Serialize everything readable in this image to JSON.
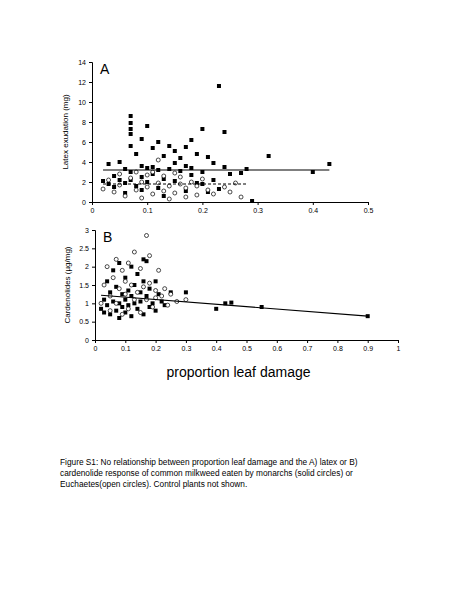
{
  "chart_data": [
    {
      "type": "scatter",
      "title": "A",
      "y_label": "Latex exudation (mg)",
      "xlim": [
        0,
        0.5
      ],
      "xticks": [
        0,
        0.1,
        0.2,
        0.3,
        0.4,
        0.5
      ],
      "ylim": [
        0,
        14
      ],
      "yticks": [
        0,
        2,
        4,
        6,
        8,
        10,
        12,
        14
      ],
      "series": [
        {
          "type": "scatter",
          "marker": "square",
          "color": "#000000",
          "x": [
            0.02,
            0.03,
            0.03,
            0.04,
            0.04,
            0.05,
            0.05,
            0.06,
            0.06,
            0.06,
            0.07,
            0.07,
            0.07,
            0.07,
            0.07,
            0.07,
            0.07,
            0.08,
            0.08,
            0.09,
            0.09,
            0.09,
            0.09,
            0.1,
            0.1,
            0.1,
            0.11,
            0.11,
            0.11,
            0.12,
            0.12,
            0.12,
            0.13,
            0.13,
            0.13,
            0.14,
            0.14,
            0.15,
            0.15,
            0.15,
            0.16,
            0.16,
            0.17,
            0.17,
            0.17,
            0.18,
            0.18,
            0.18,
            0.19,
            0.19,
            0.2,
            0.2,
            0.2,
            0.21,
            0.21,
            0.22,
            0.22,
            0.23,
            0.23,
            0.24,
            0.24,
            0.25,
            0.27,
            0.28,
            0.29,
            0.32,
            0.4,
            0.43
          ],
          "values": [
            2.1,
            1.8,
            3.8,
            2.6,
            1.5,
            4.0,
            2.2,
            3.3,
            1.9,
            0.9,
            8.6,
            7.9,
            7.3,
            6.8,
            5.6,
            3.0,
            2.2,
            4.8,
            1.6,
            6.3,
            3.6,
            2.5,
            1.2,
            7.6,
            3.4,
            2.0,
            5.4,
            3.5,
            2.8,
            6.0,
            3.2,
            1.4,
            4.6,
            2.3,
            0.6,
            5.6,
            3.3,
            5.1,
            3.9,
            2.1,
            4.4,
            3.1,
            5.5,
            3.6,
            1.1,
            6.2,
            3.4,
            2.7,
            4.8,
            1.9,
            7.3,
            3.0,
            1.8,
            4.5,
            1.0,
            3.9,
            2.2,
            11.6,
            1.3,
            3.5,
            7.0,
            2.8,
            2.9,
            3.3,
            0.1,
            4.6,
            3.0,
            3.8
          ]
        },
        {
          "type": "scatter",
          "marker": "open-circle",
          "color": "#000000",
          "x": [
            0.02,
            0.03,
            0.04,
            0.05,
            0.05,
            0.06,
            0.07,
            0.08,
            0.08,
            0.09,
            0.09,
            0.1,
            0.1,
            0.11,
            0.11,
            0.12,
            0.12,
            0.13,
            0.13,
            0.14,
            0.14,
            0.15,
            0.15,
            0.16,
            0.16,
            0.17,
            0.17,
            0.18,
            0.19,
            0.19,
            0.2,
            0.21,
            0.22,
            0.24,
            0.25,
            0.26,
            0.27
          ],
          "values": [
            1.3,
            2.2,
            1.0,
            2.8,
            1.7,
            0.6,
            2.4,
            3.0,
            1.2,
            0.4,
            2.0,
            1.5,
            2.7,
            0.8,
            3.0,
            1.9,
            4.2,
            1.1,
            2.6,
            0.3,
            1.6,
            2.9,
            0.9,
            1.8,
            2.5,
            0.5,
            1.4,
            2.0,
            0.7,
            1.6,
            2.3,
            1.2,
            0.8,
            1.5,
            1.0,
            1.9,
            0.5
          ]
        },
        {
          "type": "line",
          "line_style": "solid",
          "color": "#000000",
          "x": [
            0.02,
            0.43
          ],
          "values": [
            3.2,
            3.2
          ]
        },
        {
          "type": "line",
          "line_style": "dashed",
          "color": "#000000",
          "x": [
            0.02,
            0.28
          ],
          "values": [
            1.8,
            1.8
          ]
        }
      ]
    },
    {
      "type": "scatter",
      "title": "B",
      "y_label": "Cardenolides (µg/mg)",
      "x_label": "proportion leaf damage",
      "xlim": [
        0,
        1
      ],
      "xticks": [
        0,
        0.1,
        0.2,
        0.3,
        0.4,
        0.5,
        0.6,
        0.7,
        0.8,
        0.9,
        1
      ],
      "ylim": [
        0,
        3
      ],
      "yticks": [
        0,
        0.5,
        1,
        1.5,
        2,
        2.5,
        3
      ],
      "series": [
        {
          "type": "scatter",
          "marker": "square",
          "color": "#000000",
          "x": [
            0.02,
            0.03,
            0.03,
            0.04,
            0.04,
            0.05,
            0.05,
            0.06,
            0.06,
            0.07,
            0.07,
            0.08,
            0.08,
            0.08,
            0.09,
            0.09,
            0.1,
            0.1,
            0.1,
            0.11,
            0.11,
            0.12,
            0.12,
            0.12,
            0.13,
            0.13,
            0.14,
            0.14,
            0.15,
            0.15,
            0.16,
            0.16,
            0.16,
            0.17,
            0.17,
            0.18,
            0.18,
            0.19,
            0.2,
            0.2,
            0.21,
            0.22,
            0.23,
            0.25,
            0.3,
            0.4,
            0.43,
            0.45,
            0.55,
            0.9
          ],
          "values": [
            0.85,
            1.1,
            0.75,
            1.6,
            0.95,
            1.3,
            0.7,
            1.9,
            1.05,
            0.8,
            1.45,
            2.1,
            1.0,
            0.6,
            1.25,
            0.9,
            1.7,
            1.1,
            0.75,
            1.35,
            0.95,
            2.0,
            1.2,
            0.65,
            1.5,
            1.0,
            1.8,
            0.85,
            1.3,
            1.05,
            2.2,
            1.6,
            0.7,
            2.15,
            1.2,
            1.4,
            0.9,
            1.0,
            1.6,
            0.8,
            1.25,
            1.05,
            0.95,
            1.3,
            1.3,
            0.85,
            1.0,
            1.02,
            0.9,
            0.65
          ]
        },
        {
          "type": "scatter",
          "marker": "open-circle",
          "color": "#000000",
          "x": [
            0.02,
            0.03,
            0.04,
            0.05,
            0.05,
            0.06,
            0.07,
            0.07,
            0.08,
            0.09,
            0.09,
            0.1,
            0.1,
            0.11,
            0.11,
            0.12,
            0.13,
            0.13,
            0.14,
            0.15,
            0.15,
            0.16,
            0.17,
            0.17,
            0.18,
            0.18,
            0.19,
            0.2,
            0.2,
            0.21,
            0.22,
            0.23,
            0.24,
            0.25,
            0.27,
            0.3
          ],
          "values": [
            1.0,
            1.5,
            2.0,
            1.2,
            0.8,
            1.7,
            2.2,
            1.0,
            1.4,
            1.9,
            0.7,
            1.6,
            1.25,
            2.1,
            0.85,
            1.5,
            2.4,
            1.1,
            1.3,
            1.95,
            0.75,
            1.45,
            2.85,
            1.1,
            2.3,
            1.55,
            0.9,
            1.35,
            1.15,
            1.9,
            1.2,
            1.4,
            0.95,
            1.25,
            1.05,
            1.1
          ]
        },
        {
          "type": "line",
          "line_style": "solid",
          "color": "#000000",
          "x": [
            0.02,
            0.9
          ],
          "values": [
            1.22,
            0.65
          ]
        }
      ]
    }
  ],
  "caption": [
    "Figure S1: No relationship between proportion leaf damage and the A) latex or B)",
    "cardenolide response of common milkweed eaten by monarchs (solid circles) or",
    "Euchaetes(open circles).  Control plants not shown."
  ]
}
